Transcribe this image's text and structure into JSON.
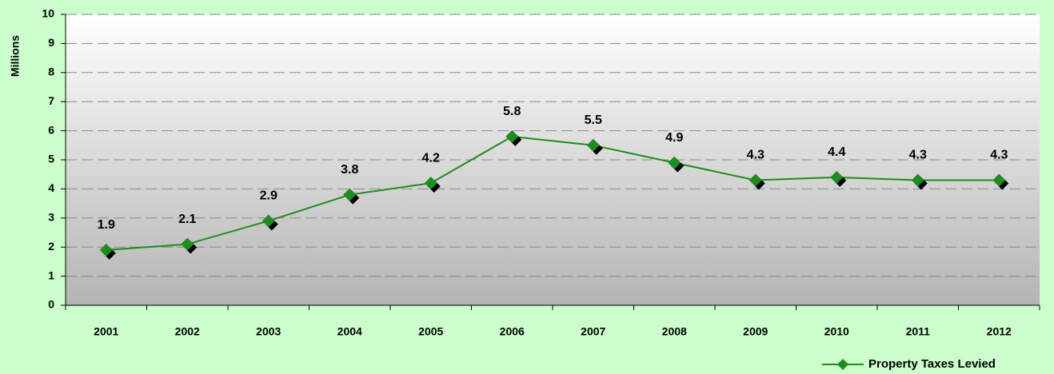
{
  "chart_data": {
    "type": "line",
    "y_label": "Millions",
    "categories": [
      "2001",
      "2002",
      "2003",
      "2004",
      "2005",
      "2006",
      "2007",
      "2008",
      "2009",
      "2010",
      "2011",
      "2012"
    ],
    "series": [
      {
        "name": "Property Taxes Levied",
        "color": "#1e8c1e",
        "values": [
          1.9,
          2.1,
          2.9,
          3.8,
          4.2,
          5.8,
          5.5,
          4.9,
          4.3,
          4.4,
          4.3,
          4.3
        ]
      }
    ],
    "ylim": [
      0,
      10
    ],
    "yticks": [
      0,
      1,
      2,
      3,
      4,
      5,
      6,
      7,
      8,
      9,
      10
    ],
    "grid": true,
    "legend": "bottom-right"
  }
}
